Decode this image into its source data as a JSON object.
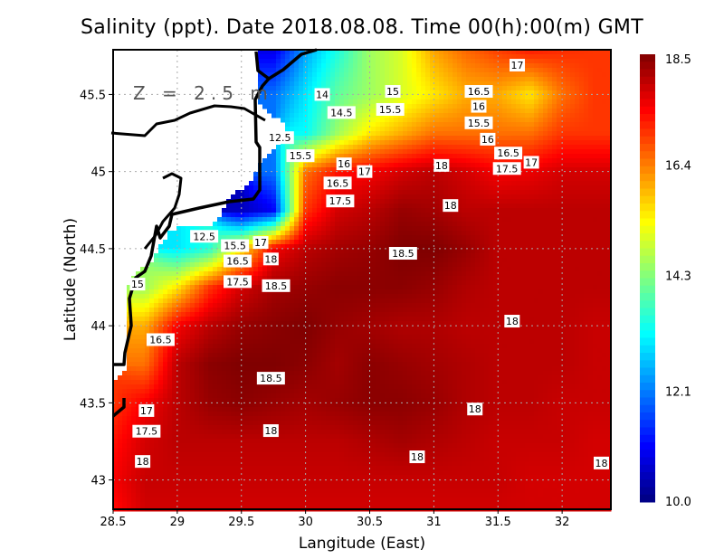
{
  "chart_data": {
    "type": "heatmap",
    "title": "Salinity (ppt). Date 2018.08.08. Time 00(h):00(m) GMT",
    "annotation": "Z = 2.5 m",
    "xlabel": "Langitude (East)",
    "ylabel": "Latitude (North)",
    "xlim": [
      28.5,
      32.38
    ],
    "ylim": [
      42.81,
      45.79
    ],
    "xticks": [
      "28.5",
      "29",
      "29.5",
      "30",
      "30.5",
      "31",
      "31.5",
      "32"
    ],
    "yticks": [
      "43",
      "43.5",
      "44",
      "44.5",
      "45",
      "45.5"
    ],
    "grid": true,
    "colormap": "jet",
    "colorbar": {
      "range": [
        10.0,
        18.5
      ],
      "ticks": [
        "10.0",
        "12.1",
        "14.3",
        "16.4",
        "18.5"
      ],
      "placement": "right"
    },
    "land_color": "#ffffff",
    "grid_lon": [
      28.5,
      28.75,
      29,
      29.25,
      29.5,
      29.75,
      30,
      30.25,
      30.5,
      30.75,
      31,
      31.25,
      31.5,
      31.75,
      32,
      32.25,
      32.5
    ],
    "grid_lat": [
      45.75,
      45.5,
      45.25,
      45.0,
      44.75,
      44.5,
      44.25,
      44.0,
      43.75,
      43.5,
      43.25,
      43.0,
      42.75
    ],
    "salinity": [
      [
        null,
        null,
        null,
        null,
        null,
        11,
        12.5,
        13.5,
        14.5,
        15,
        16,
        16.5,
        16.8,
        17,
        17,
        17,
        17
      ],
      [
        null,
        null,
        null,
        null,
        null,
        12,
        13,
        14,
        14.5,
        15,
        15.5,
        16,
        16,
        15.5,
        16.5,
        17,
        17
      ],
      [
        null,
        null,
        null,
        null,
        null,
        null,
        13.2,
        14.5,
        15.5,
        16,
        16.5,
        16.5,
        16.5,
        16.5,
        17,
        17,
        17
      ],
      [
        null,
        null,
        null,
        null,
        null,
        12,
        16.5,
        17.3,
        17.5,
        17.8,
        18,
        17.8,
        17.5,
        17.6,
        17.8,
        17.8,
        17.8
      ],
      [
        null,
        null,
        null,
        null,
        10.5,
        11,
        17,
        17.8,
        18,
        18.3,
        18.2,
        18,
        18,
        18,
        18,
        18,
        18
      ],
      [
        null,
        null,
        13,
        13.5,
        15.5,
        17.5,
        18,
        18.2,
        18.3,
        18.5,
        18.5,
        18.3,
        18,
        18,
        18,
        18,
        18
      ],
      [
        null,
        14.5,
        15.5,
        17,
        17.8,
        18.2,
        18.3,
        18.4,
        18.4,
        18.4,
        18.3,
        18.1,
        18,
        18,
        18,
        18,
        18
      ],
      [
        null,
        16,
        17.5,
        18,
        18.3,
        18.4,
        18.5,
        18.3,
        18.2,
        18.1,
        18.1,
        18,
        18,
        18,
        18,
        17.9,
        17.9
      ],
      [
        null,
        16.5,
        18,
        18.4,
        18.5,
        18.5,
        18.4,
        18.2,
        18.4,
        18.3,
        18.2,
        18.1,
        18,
        18,
        18,
        17.9,
        17.9
      ],
      [
        17,
        17.5,
        18,
        18.3,
        18.4,
        18.3,
        18.2,
        18.3,
        18.4,
        18.4,
        18.3,
        18.1,
        18,
        18,
        17.9,
        17.9,
        17.9
      ],
      [
        17.3,
        17.8,
        18,
        18,
        18,
        18,
        18,
        18,
        18.1,
        18.2,
        18.1,
        18,
        17.9,
        17.9,
        17.9,
        17.8,
        17.8
      ],
      [
        17.5,
        17.9,
        17.9,
        17.9,
        17.9,
        17.9,
        17.9,
        17.9,
        17.9,
        17.9,
        17.9,
        17.9,
        17.9,
        17.8,
        17.8,
        17.8,
        17.8
      ],
      [
        17.3,
        17.8,
        17.8,
        17.8,
        17.8,
        17.8,
        17.8,
        17.8,
        17.8,
        17.8,
        17.8,
        17.8,
        17.8,
        17.8,
        17.8,
        17.8,
        17.8
      ]
    ],
    "contour_labels": [
      {
        "text": "17",
        "lon": 31.65,
        "lat": 45.69
      },
      {
        "text": "14",
        "lon": 30.13,
        "lat": 45.5
      },
      {
        "text": "14.5",
        "lon": 30.28,
        "lat": 45.43
      },
      {
        "text": "15",
        "lon": 30.68,
        "lat": 45.52
      },
      {
        "text": "15.5",
        "lon": 30.66,
        "lat": 45.45
      },
      {
        "text": "16.5",
        "lon": 31.35,
        "lat": 45.52
      },
      {
        "text": "16",
        "lon": 31.35,
        "lat": 45.47
      },
      {
        "text": "15.5",
        "lon": 31.35,
        "lat": 45.41
      },
      {
        "text": "12.5",
        "lon": 29.8,
        "lat": 45.22
      },
      {
        "text": "15.5",
        "lon": 29.96,
        "lat": 45.15
      },
      {
        "text": "16",
        "lon": 31.42,
        "lat": 45.21
      },
      {
        "text": "16.5",
        "lon": 31.58,
        "lat": 45.12
      },
      {
        "text": "17",
        "lon": 31.76,
        "lat": 45.06
      },
      {
        "text": "17.5",
        "lon": 31.57,
        "lat": 45.02
      },
      {
        "text": "18",
        "lon": 31.06,
        "lat": 45.04
      },
      {
        "text": "16",
        "lon": 30.3,
        "lat": 45.05
      },
      {
        "text": "16.5",
        "lon": 30.25,
        "lat": 45.02
      },
      {
        "text": "17",
        "lon": 30.39,
        "lat": 45.0
      },
      {
        "text": "17.5",
        "lon": 30.27,
        "lat": 44.95
      },
      {
        "text": "18",
        "lon": 31.13,
        "lat": 44.78
      },
      {
        "text": "12.5",
        "lon": 29.21,
        "lat": 44.58
      },
      {
        "text": "17",
        "lon": 29.65,
        "lat": 44.54
      },
      {
        "text": "18",
        "lon": 29.73,
        "lat": 44.48
      },
      {
        "text": "15.5",
        "lon": 29.45,
        "lat": 44.52
      },
      {
        "text": "16.5",
        "lon": 29.47,
        "lat": 44.42
      },
      {
        "text": "17.5",
        "lon": 29.47,
        "lat": 44.38
      },
      {
        "text": "18.5",
        "lon": 30.76,
        "lat": 44.47
      },
      {
        "text": "18.5",
        "lon": 29.77,
        "lat": 44.26
      },
      {
        "text": "15",
        "lon": 28.69,
        "lat": 44.27
      },
      {
        "text": "18",
        "lon": 31.61,
        "lat": 44.03
      },
      {
        "text": "16.5",
        "lon": 28.87,
        "lat": 43.91
      },
      {
        "text": "18.5",
        "lon": 29.73,
        "lat": 43.66
      },
      {
        "text": "17",
        "lon": 28.76,
        "lat": 43.45
      },
      {
        "text": "17.5",
        "lon": 28.76,
        "lat": 43.41
      },
      {
        "text": "18",
        "lon": 31.32,
        "lat": 43.46
      },
      {
        "text": "18",
        "lon": 29.73,
        "lat": 43.32
      },
      {
        "text": "18",
        "lon": 30.87,
        "lat": 43.15
      },
      {
        "text": "18",
        "lon": 28.73,
        "lat": 43.12
      },
      {
        "text": "18",
        "lon": 32.34,
        "lat": 43.11
      }
    ]
  }
}
